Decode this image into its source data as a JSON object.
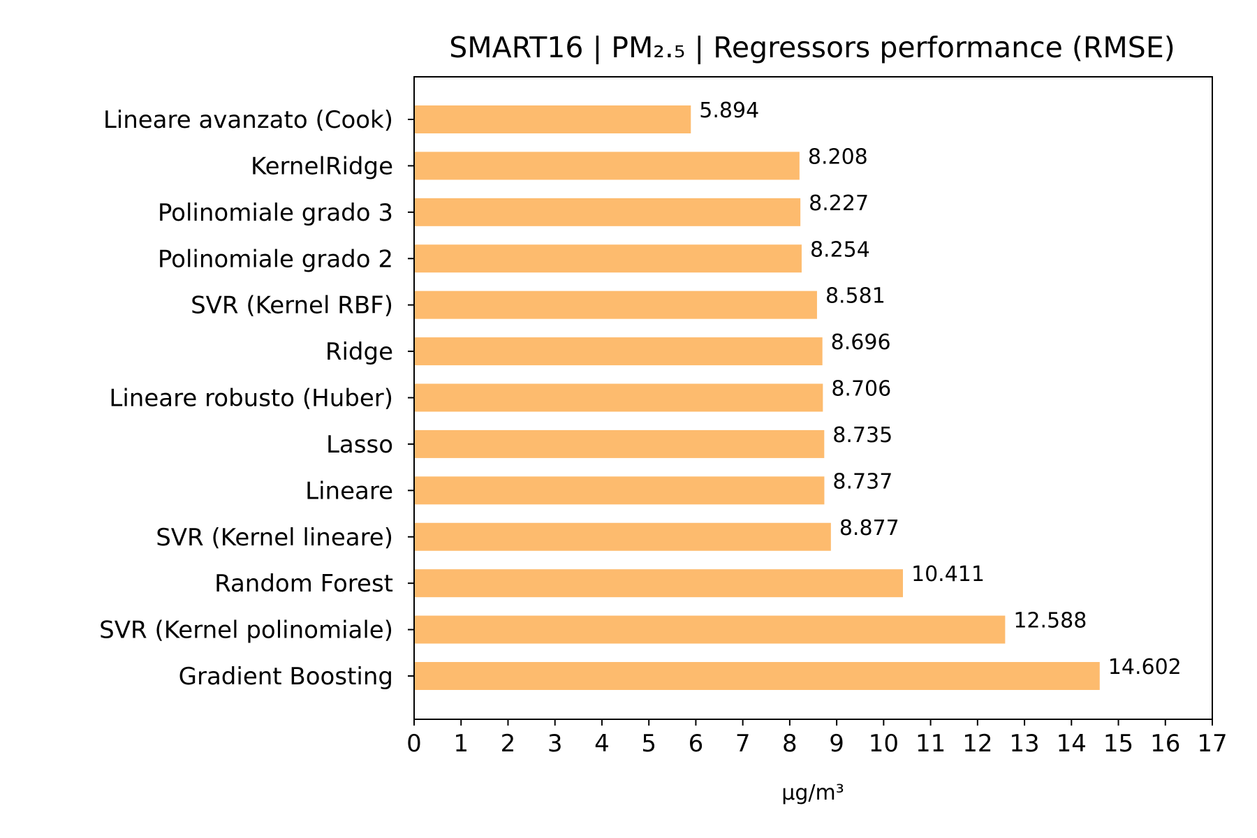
{
  "chart_data": {
    "type": "bar",
    "orientation": "horizontal",
    "title": "SMART16 | PM₂.₅ | Regressors performance (RMSE)",
    "xlabel": "µg/m³",
    "ylabel": "",
    "xlim": [
      0,
      17
    ],
    "xticks": [
      "0",
      "1",
      "2",
      "3",
      "4",
      "5",
      "6",
      "7",
      "8",
      "9",
      "10",
      "11",
      "12",
      "13",
      "14",
      "15",
      "16",
      "17"
    ],
    "grid": false,
    "bar_color": "#fdbb6e",
    "categories": [
      "Lineare avanzato (Cook)",
      "KernelRidge",
      "Polinomiale grado 3",
      "Polinomiale grado 2",
      "SVR (Kernel RBF)",
      "Ridge",
      "Lineare robusto (Huber)",
      "Lasso",
      "Lineare",
      "SVR (Kernel lineare)",
      "Random Forest",
      "SVR (Kernel polinomiale)",
      "Gradient Boosting"
    ],
    "values": [
      5.894,
      8.208,
      8.227,
      8.254,
      8.581,
      8.696,
      8.706,
      8.735,
      8.737,
      8.877,
      10.411,
      12.588,
      14.602
    ],
    "value_labels": [
      "5.894",
      "8.208",
      "8.227",
      "8.254",
      "8.581",
      "8.696",
      "8.706",
      "8.735",
      "8.737",
      "8.877",
      "10.411",
      "12.588",
      "14.602"
    ]
  }
}
